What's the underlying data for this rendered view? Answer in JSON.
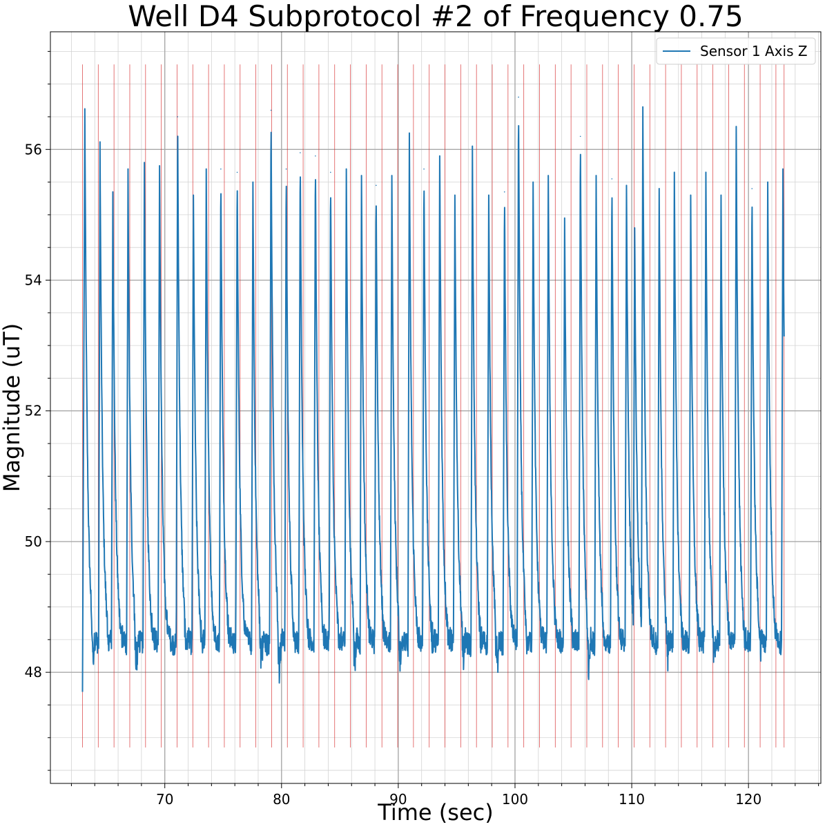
{
  "chart_data": {
    "type": "line",
    "title": "Well D4 Subprotocol #2 of Frequency 0.75",
    "xlabel": "Time (sec)",
    "ylabel": "Magnitude (uT)",
    "xlim": [
      60.2,
      126.2
    ],
    "ylim": [
      46.3,
      57.8
    ],
    "x_major_ticks": [
      70,
      80,
      90,
      100,
      110,
      120
    ],
    "x_minor_step": 2,
    "y_major_ticks": [
      48,
      50,
      52,
      54,
      56
    ],
    "y_minor_step": 0.5,
    "grid": true,
    "legend_position": "top-right",
    "colors": {
      "series": "#1f77b4",
      "markers": "#d62728"
    },
    "series": [
      {
        "name": "Sensor 1 Axis Z",
        "start_time": 62.95,
        "end_time": 123.05,
        "baseline": 48.4,
        "peak_times": [
          63.15,
          64.45,
          65.55,
          66.85,
          68.25,
          69.55,
          71.1,
          72.45,
          73.55,
          74.8,
          76.2,
          77.55,
          79.1,
          80.4,
          81.6,
          82.9,
          84.2,
          85.55,
          86.85,
          88.1,
          89.45,
          90.95,
          92.2,
          93.55,
          94.85,
          96.35,
          97.75,
          99.1,
          100.3,
          101.55,
          102.85,
          104.25,
          105.6,
          106.95,
          108.3,
          109.55,
          110.25,
          110.95,
          112.35,
          113.65,
          115.05,
          116.35,
          117.65,
          118.95,
          120.3,
          121.65,
          122.95
        ],
        "peak_values": [
          56.6,
          56.1,
          55.35,
          55.7,
          55.8,
          55.75,
          56.5,
          55.3,
          55.7,
          55.7,
          55.65,
          55.5,
          56.6,
          55.7,
          55.95,
          55.9,
          55.65,
          55.7,
          55.6,
          55.45,
          55.6,
          56.25,
          55.7,
          55.9,
          55.3,
          56.05,
          55.3,
          55.35,
          56.8,
          55.5,
          55.6,
          54.95,
          56.2,
          55.6,
          55.55,
          55.45,
          54.8,
          56.65,
          55.4,
          55.65,
          55.3,
          55.65,
          55.3,
          56.35,
          55.4,
          55.5,
          55.7
        ],
        "trough_values": [
          47.7,
          48.0,
          48.2,
          47.45,
          48.15,
          48.3,
          48.0,
          48.1,
          48.2,
          48.1,
          48.25,
          47.65,
          47.35,
          48.0,
          48.2,
          48.1,
          48.05,
          47.55,
          48.2,
          48.1,
          47.45,
          48.2,
          48.1,
          48.15,
          47.6,
          48.1,
          47.45,
          48.15,
          48.0,
          48.25,
          48.15,
          48.1,
          47.5,
          48.0,
          48.15,
          48.1,
          47.85,
          48.2,
          47.75,
          48.1,
          48.15,
          47.65,
          48.2,
          48.1,
          48.0,
          48.2,
          48.15
        ]
      }
    ],
    "marker_lines": {
      "y_range": [
        46.85,
        57.3
      ],
      "times": [
        62.95,
        64.3,
        65.65,
        67.0,
        68.35,
        69.7,
        71.05,
        72.4,
        73.75,
        75.1,
        76.45,
        77.8,
        79.15,
        80.5,
        81.85,
        83.2,
        84.55,
        85.9,
        87.25,
        88.6,
        89.95,
        91.3,
        92.65,
        94.0,
        95.35,
        96.7,
        98.05,
        99.4,
        100.75,
        102.1,
        103.45,
        104.8,
        106.15,
        107.5,
        108.85,
        110.2,
        111.55,
        112.9,
        114.25,
        115.6,
        116.95,
        118.3,
        119.65,
        121.0,
        122.35,
        123.05
      ]
    }
  }
}
